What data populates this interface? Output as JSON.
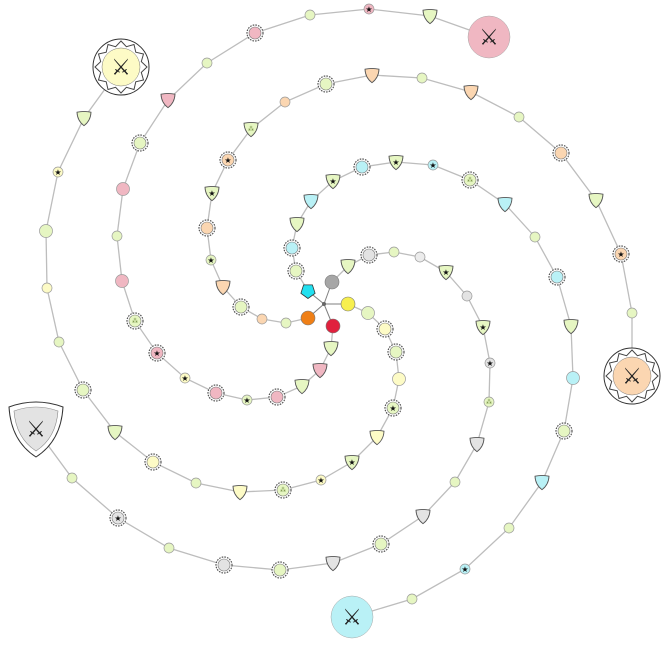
{
  "colors": {
    "green": "#e6f6c2",
    "yellow": "#fdfbc6",
    "pink": "#f0b7c2",
    "orange": "#fbd6b1",
    "cyan": "#b9f1f6",
    "gray": "#e3e3e3",
    "lightgray": "#ececec",
    "stroke": "#6b6b6b",
    "path": "#bdbdbd",
    "start_cyan": "#22e0f0",
    "start_gray": "#a6a6a6",
    "start_yellow": "#f7ef4e",
    "start_red": "#e0213d",
    "start_orange": "#ef7f16"
  },
  "legend_icons": {
    "boss": "crossed-swords-icon",
    "elite": "star-icon",
    "leaf": "flower-icon"
  },
  "bosses": [
    {
      "name": "boss-pink",
      "color": "pink",
      "shape": "circle",
      "symbol": "⚔"
    },
    {
      "name": "boss-yellow",
      "color": "yellow",
      "shape": "star-circle",
      "symbol": "⚔"
    },
    {
      "name": "boss-orange",
      "color": "orange",
      "shape": "star-circle",
      "symbol": "⚔"
    },
    {
      "name": "boss-gray",
      "color": "gray",
      "shape": "shield",
      "symbol": "⚔"
    },
    {
      "name": "boss-cyan",
      "color": "cyan",
      "shape": "circle",
      "symbol": "⚔"
    }
  ],
  "starts": [
    {
      "name": "start-cyan",
      "color": "start_cyan",
      "shape": "pentagon"
    },
    {
      "name": "start-gray",
      "color": "start_gray",
      "shape": "circle"
    },
    {
      "name": "start-yellow",
      "color": "start_yellow",
      "shape": "circle"
    },
    {
      "name": "start-red",
      "color": "start_red",
      "shape": "circle"
    },
    {
      "name": "start-orange",
      "color": "start_orange",
      "shape": "circle"
    }
  ]
}
